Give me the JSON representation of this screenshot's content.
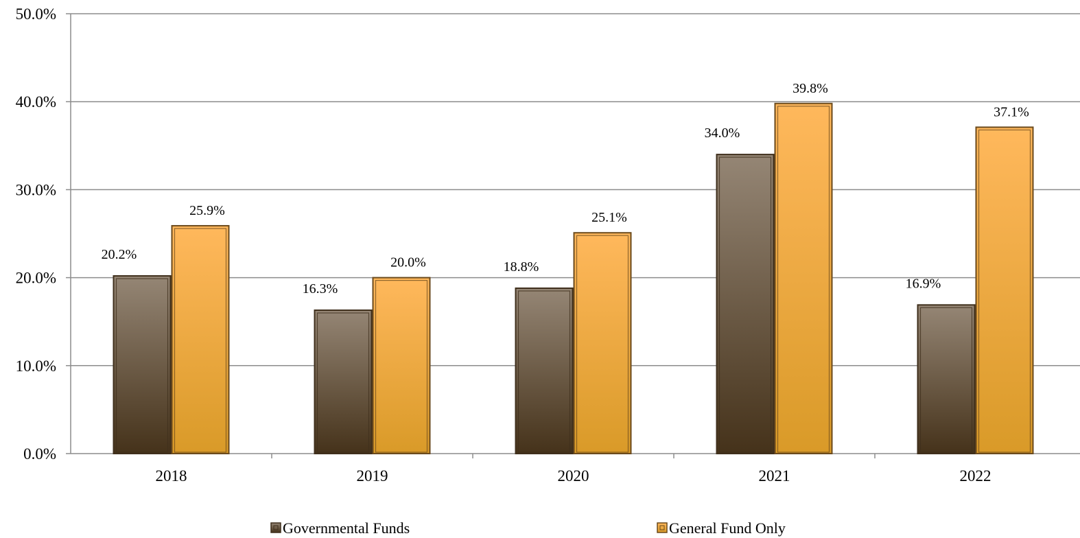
{
  "chart_data": {
    "type": "bar",
    "title": "",
    "xlabel": "",
    "ylabel": "",
    "categories": [
      "2018",
      "2019",
      "2020",
      "2021",
      "2022"
    ],
    "series": [
      {
        "name": "Governmental Funds",
        "values": [
          20.2,
          16.3,
          18.8,
          34.0,
          16.9
        ],
        "labels": [
          "20.2%",
          "16.3%",
          "18.8%",
          "34.0%",
          "16.9%"
        ],
        "color_top": "#958675",
        "color_bottom": "#45321a",
        "border": "#3f2f1c"
      },
      {
        "name": "General Fund Only",
        "values": [
          25.9,
          20.0,
          25.1,
          39.8,
          37.1
        ],
        "labels": [
          "25.9%",
          "20.0%",
          "25.1%",
          "39.8%",
          "37.1%"
        ],
        "color_top": "#ffb85c",
        "color_bottom": "#d99a28",
        "border": "#6b4a1c"
      }
    ],
    "ylim": [
      0,
      50
    ],
    "yticks": [
      "0.0%",
      "10.0%",
      "20.0%",
      "30.0%",
      "40.0%",
      "50.0%"
    ],
    "grid": true,
    "legend_position": "bottom"
  }
}
